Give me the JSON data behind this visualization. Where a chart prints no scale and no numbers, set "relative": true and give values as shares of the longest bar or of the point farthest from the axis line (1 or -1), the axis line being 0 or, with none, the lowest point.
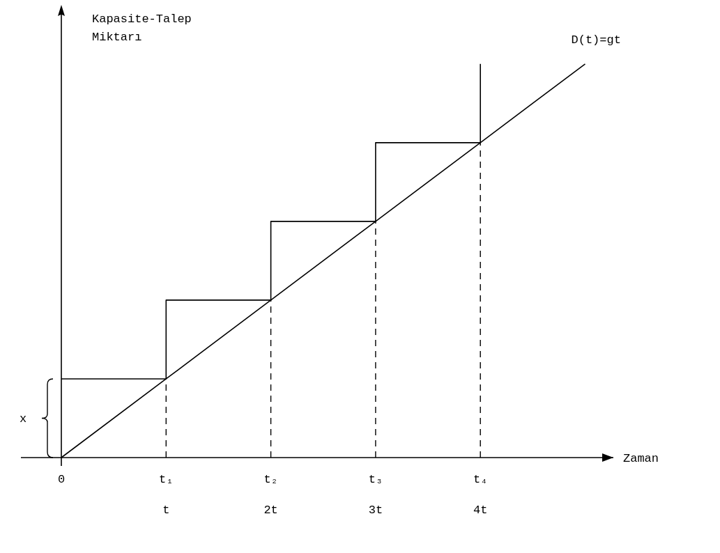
{
  "chart_data": {
    "type": "line",
    "relative": true,
    "ylabel": "Kapasite-Talep\nMiktarı",
    "xlabel": "Zaman",
    "categories": [
      "0",
      "t₁",
      "t₂",
      "t₃",
      "t₄",
      null
    ],
    "series": [
      {
        "name": "D(t)=gt",
        "color": "#000000",
        "values": [
          0,
          0.2,
          0.4,
          0.6,
          0.8,
          1
        ]
      },
      {
        "type": "step",
        "color": "#000000",
        "values": [
          0.2,
          0.4,
          0.6,
          0.8,
          1,
          null
        ]
      }
    ],
    "ref_lines": [
      {
        "axis": "x",
        "value": "t₁",
        "line_style": "dashed"
      },
      {
        "axis": "x",
        "value": "t₂",
        "line_style": "dashed"
      },
      {
        "axis": "x",
        "value": "t₃",
        "line_style": "dashed"
      },
      {
        "axis": "x",
        "value": "t₄",
        "line_style": "dashed"
      }
    ],
    "annotations": [
      "x",
      "t",
      "2t",
      "3t",
      "4t"
    ]
  }
}
